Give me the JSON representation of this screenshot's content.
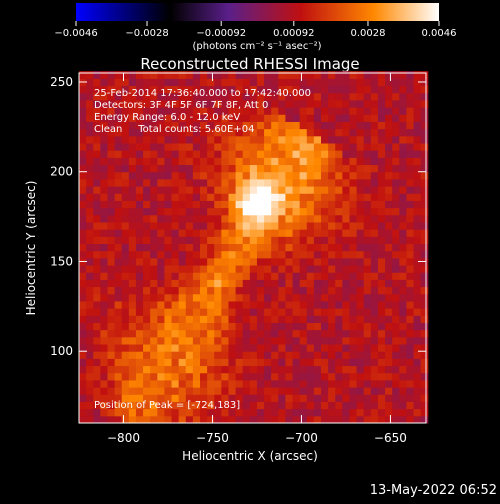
{
  "chart_data": {
    "type": "heatmap",
    "title": "Reconstructed RHESSI Image",
    "xlabel": "Heliocentric X (arcsec)",
    "ylabel": "Heliocentric Y (arcsec)",
    "xlim": [
      -825,
      -630
    ],
    "ylim": [
      60,
      255
    ],
    "x_ticks": [
      -800,
      -750,
      -700,
      -650
    ],
    "x_tick_labels": [
      "−800",
      "−750",
      "−700",
      "−650"
    ],
    "y_ticks": [
      100,
      150,
      200,
      250
    ],
    "y_tick_labels": [
      "100",
      "150",
      "200",
      "250"
    ],
    "colorbar": {
      "min": -0.0046,
      "max": 0.0046,
      "ticks": [
        -0.0046,
        -0.0028,
        -0.00092,
        0.00092,
        0.0028,
        0.0046
      ],
      "tick_labels": [
        "−0.0046",
        "−0.0028",
        "−0.00092",
        "0.00092",
        "0.0028",
        "0.0046"
      ],
      "unit_label": "(photons cm⁻² s⁻¹ asec⁻²)",
      "colors": [
        "#0000ff",
        "#000000",
        "#5a1f8a",
        "#c01010",
        "#ff8800",
        "#ffffff"
      ]
    },
    "annotations": [
      "25-Feb-2014 17:36:40.000 to 17:42:40.000",
      "Detectors: 3F 4F 5F 6F 7F 8F, Att 0",
      "Energy Range: 6.0 - 12.0 keV",
      "Clean     Total counts: 5.60E+04"
    ],
    "peak_label": "Position of Peak = [-724,183]",
    "peak": {
      "x": -724,
      "y": 183
    },
    "source": {
      "axis_from": [
        -790,
        70
      ],
      "axis_to": [
        -700,
        215
      ],
      "width_arcsec": 20,
      "background_value": 0.0009
    }
  },
  "footer": {
    "timestamp": "13-May-2022 06:52"
  }
}
